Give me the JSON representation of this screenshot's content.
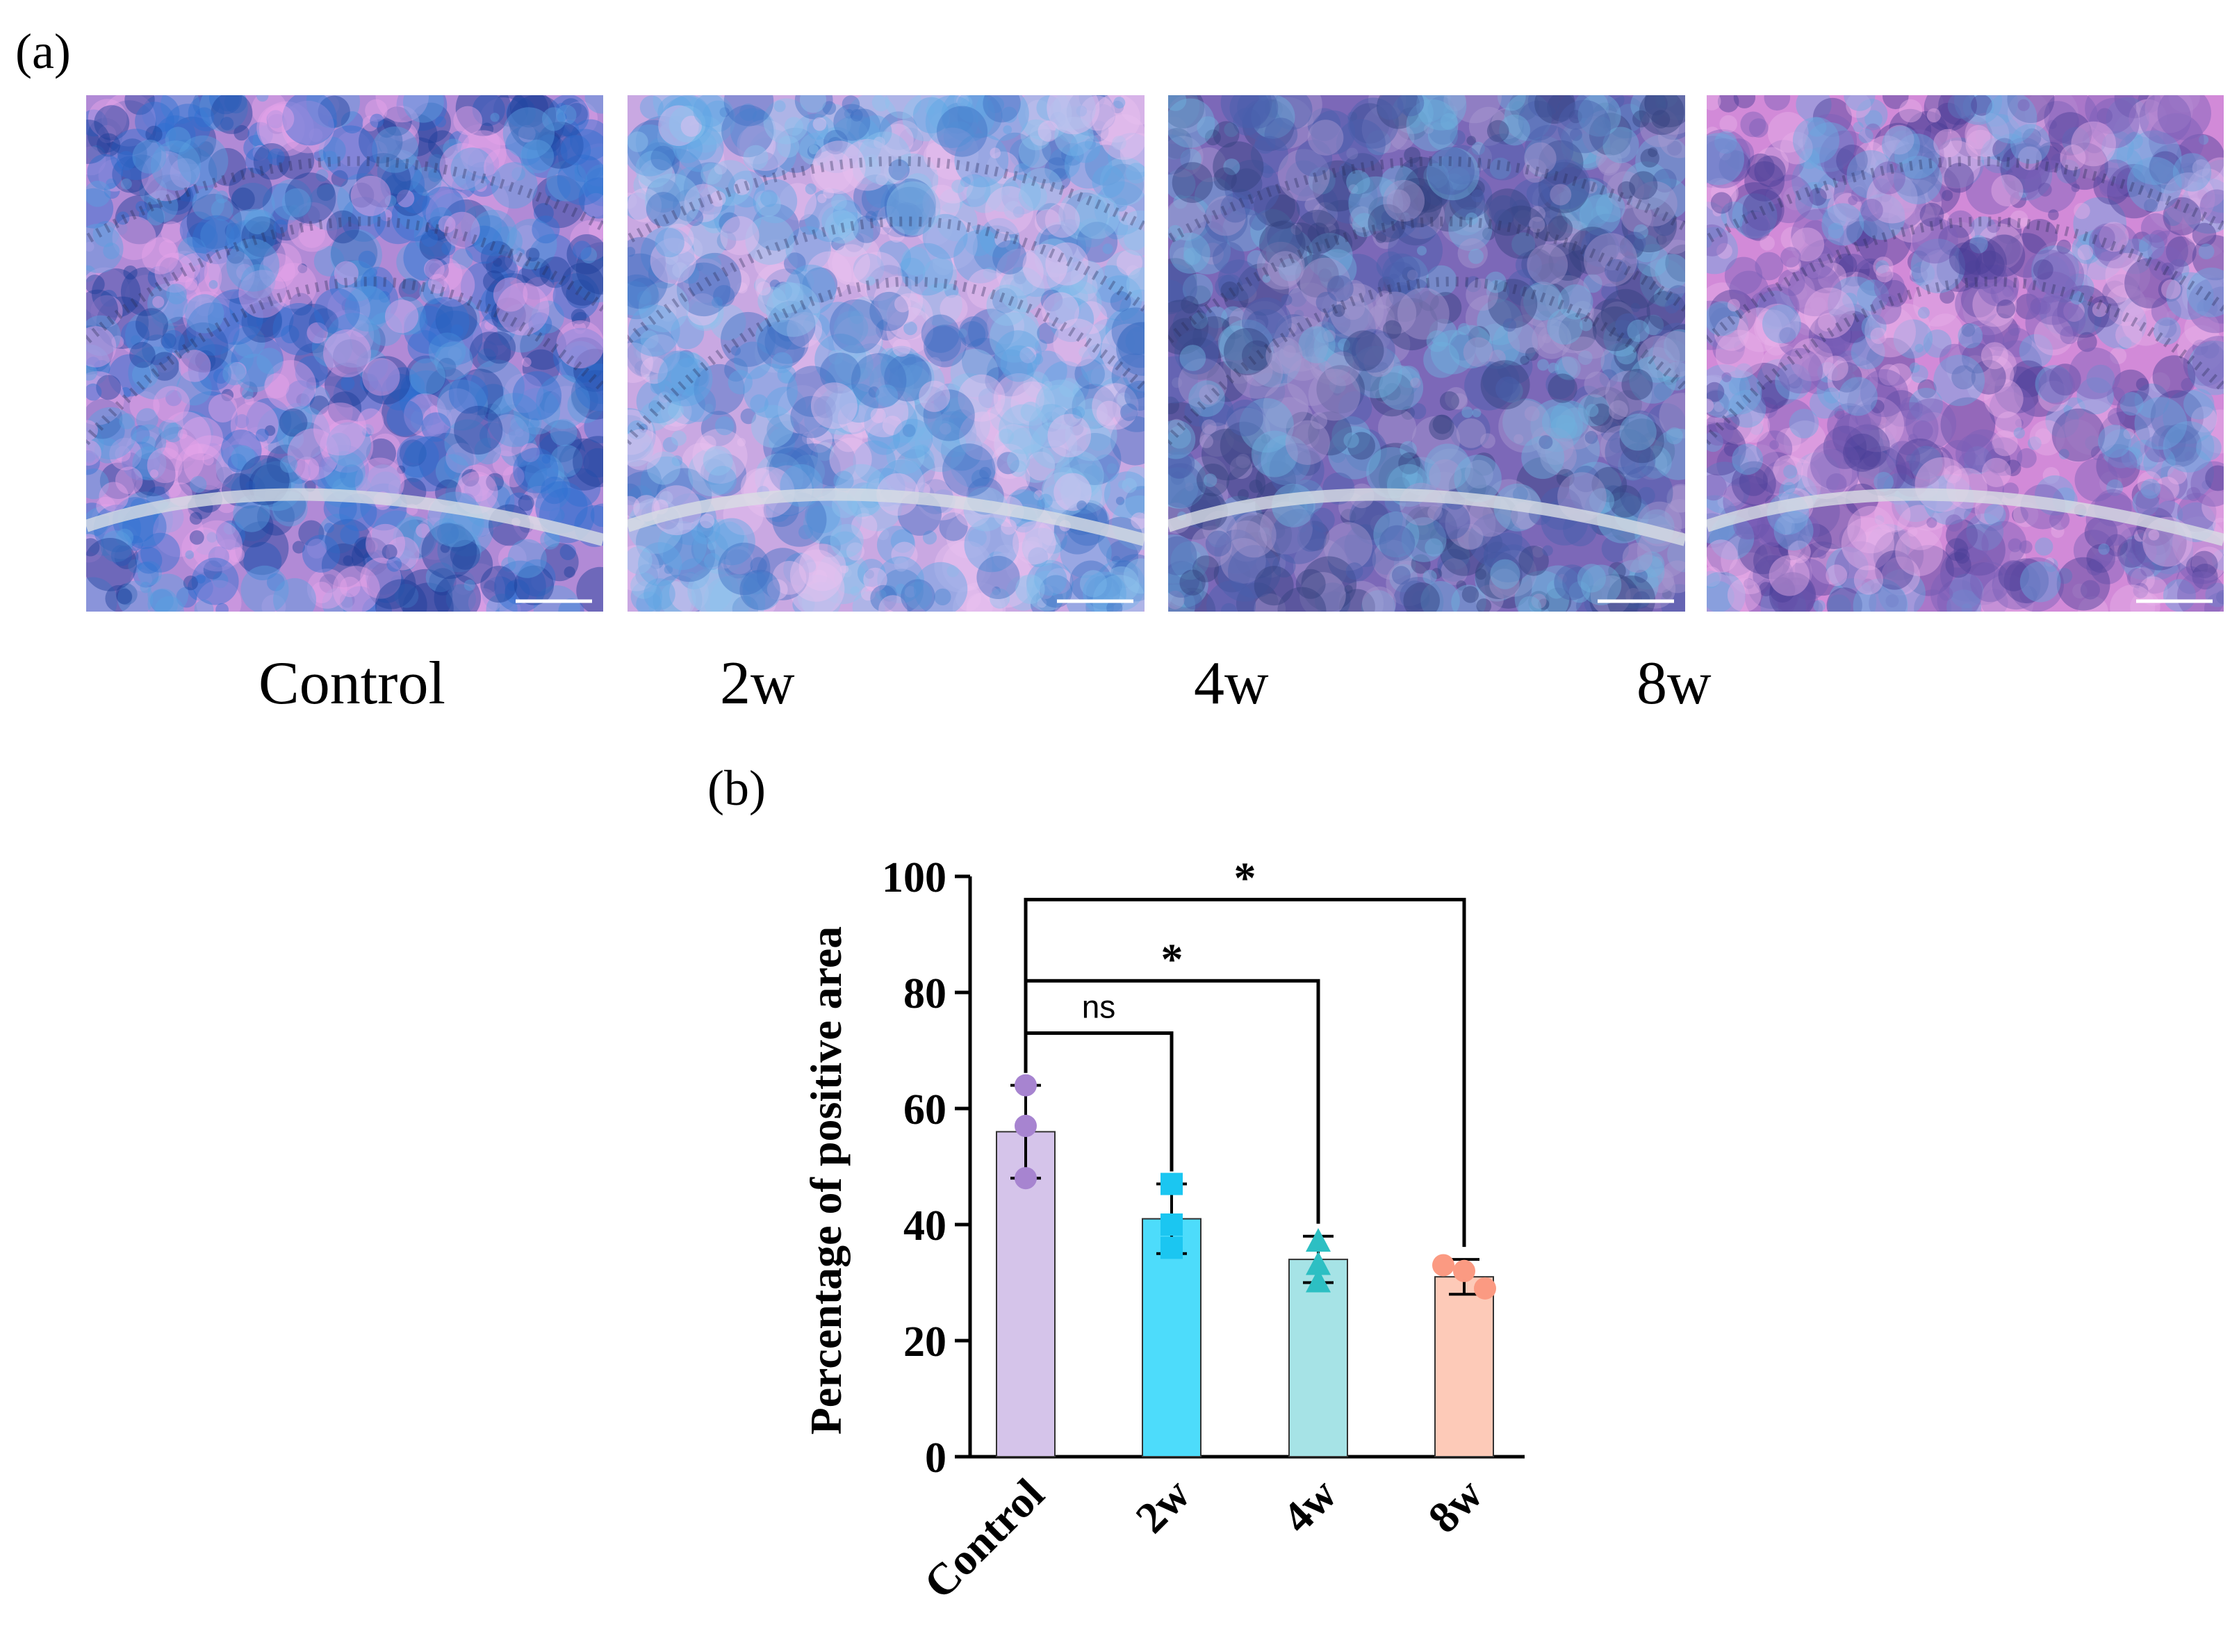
{
  "panel_a_label": "(a)",
  "panel_b_label": "(b)",
  "images": [
    {
      "label": "Control",
      "palette": [
        "#b18ad6",
        "#2f6fd0",
        "#e6a4e8",
        "#5aa0e0",
        "#1c3f9a"
      ]
    },
    {
      "label": "2w",
      "palette": [
        "#c9a8e2",
        "#5fa6e4",
        "#e9c2ef",
        "#8fc3ee",
        "#3f6fc4"
      ]
    },
    {
      "label": "4w",
      "palette": [
        "#7c68b8",
        "#4a5fae",
        "#a99ad0",
        "#6fb2dd",
        "#33407f"
      ]
    },
    {
      "label": "8w",
      "palette": [
        "#d28ad8",
        "#7b5fb8",
        "#e7b0e8",
        "#6aa8df",
        "#4a3f96"
      ]
    }
  ],
  "chart_data": {
    "type": "bar",
    "title": "",
    "xlabel": "",
    "ylabel": "Percentage of positive area",
    "ylim": [
      0,
      100
    ],
    "yticks": [
      0,
      20,
      40,
      60,
      80,
      100
    ],
    "categories": [
      "Control",
      "2w",
      "4w",
      "8w"
    ],
    "values": [
      56,
      41,
      34,
      31
    ],
    "error": [
      8,
      6,
      4,
      3
    ],
    "points": [
      [
        64,
        57,
        48
      ],
      [
        47,
        40,
        36
      ],
      [
        37,
        33,
        30
      ],
      [
        33,
        32,
        29
      ]
    ],
    "markers": [
      "circle",
      "square",
      "triangle",
      "circle"
    ],
    "bar_colors": [
      "#d5c4ea",
      "#4ddcfb",
      "#a6e3e6",
      "#fdcab8"
    ],
    "point_colors": [
      "#a784d0",
      "#1bc6f1",
      "#2dbfc3",
      "#fb9a82"
    ],
    "comparisons": [
      {
        "from": "Control",
        "to": "2w",
        "label": "ns",
        "level": 73
      },
      {
        "from": "Control",
        "to": "4w",
        "label": "*",
        "level": 82
      },
      {
        "from": "Control",
        "to": "8w",
        "label": "*",
        "level": 96
      }
    ]
  }
}
